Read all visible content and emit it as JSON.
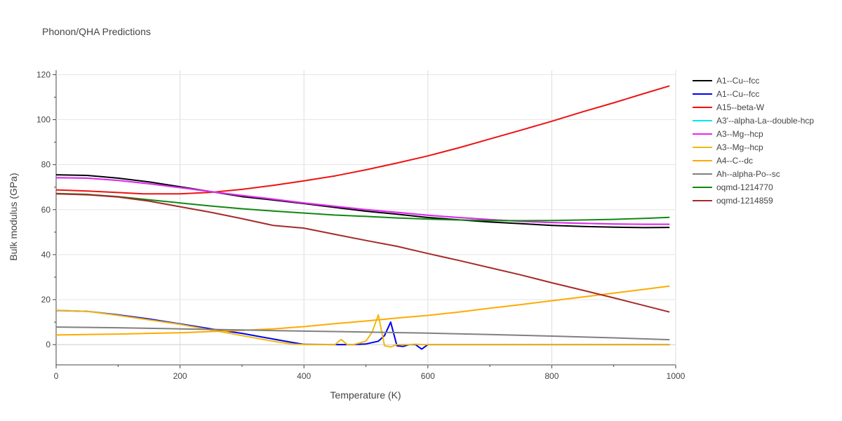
{
  "chart_data": {
    "type": "line",
    "title": "Phonon/QHA Predictions",
    "xlabel": "Temperature (K)",
    "ylabel": "Bulk modulus (GPa)",
    "xlim": [
      0,
      1000
    ],
    "ylim": [
      -9,
      122
    ],
    "xticks": [
      0,
      200,
      400,
      600,
      800,
      1000
    ],
    "yticks": [
      0,
      20,
      40,
      60,
      80,
      100,
      120
    ],
    "grid": true,
    "legend_position": "right",
    "series": [
      {
        "name": "A1--Cu--fcc",
        "color": "#000000",
        "x": [
          0,
          50,
          100,
          150,
          200,
          250,
          300,
          350,
          400,
          450,
          500,
          550,
          600,
          650,
          700,
          750,
          800,
          850,
          900,
          950,
          990
        ],
        "y": [
          75.5,
          75.2,
          74.0,
          72.3,
          70.2,
          68.0,
          65.8,
          64.3,
          62.7,
          61.0,
          59.3,
          58.0,
          56.5,
          55.5,
          54.5,
          53.8,
          53.0,
          52.5,
          52.2,
          52.0,
          52.1
        ]
      },
      {
        "name": "A1--Cu--fcc",
        "color": "#0000ee",
        "x": [
          0,
          50,
          100,
          150,
          200,
          250,
          300,
          350,
          380,
          400,
          450,
          480,
          500,
          520,
          530,
          540,
          550,
          560,
          570,
          580,
          590,
          600,
          650,
          700,
          800,
          900,
          990
        ],
        "y": [
          15.2,
          14.8,
          13.2,
          11.4,
          9.2,
          7.0,
          5.0,
          2.5,
          1.0,
          0.1,
          0.0,
          0.0,
          0.3,
          1.5,
          4.0,
          10.0,
          -0.5,
          -0.8,
          0.0,
          0.0,
          -2.0,
          0.0,
          0.0,
          0.0,
          0.0,
          0.0,
          0.0
        ]
      },
      {
        "name": "A15--beta-W",
        "color": "#ee1111",
        "x": [
          0,
          50,
          100,
          140,
          200,
          250,
          300,
          350,
          400,
          450,
          500,
          550,
          600,
          650,
          700,
          750,
          800,
          850,
          900,
          950,
          990
        ],
        "y": [
          68.8,
          68.3,
          67.6,
          67.0,
          67.0,
          67.7,
          69.0,
          70.8,
          72.8,
          75.0,
          77.7,
          80.7,
          83.9,
          87.5,
          91.4,
          95.3,
          99.3,
          103.5,
          107.5,
          111.7,
          115.0
        ]
      },
      {
        "name": "A3'--alpha-La--double-hcp",
        "color": "#00e5ee",
        "x": [
          0,
          50,
          100,
          150,
          200,
          250,
          300,
          350,
          400,
          450,
          500,
          550,
          600,
          650,
          700,
          750,
          800,
          850,
          900,
          950,
          990
        ],
        "y": [
          74.2,
          74.0,
          73.0,
          71.5,
          69.8,
          68.0,
          66.3,
          64.7,
          63.0,
          61.5,
          60.0,
          58.8,
          57.5,
          56.5,
          55.6,
          54.8,
          54.3,
          53.9,
          53.6,
          53.5,
          53.5
        ]
      },
      {
        "name": "A3--Mg--hcp",
        "color": "#ee22ee",
        "x": [
          0,
          50,
          100,
          150,
          200,
          250,
          300,
          350,
          400,
          450,
          500,
          550,
          600,
          650,
          700,
          750,
          800,
          850,
          900,
          950,
          990
        ],
        "y": [
          74.2,
          74.0,
          73.0,
          71.5,
          69.8,
          68.0,
          66.3,
          64.7,
          63.0,
          61.5,
          60.0,
          58.8,
          57.5,
          56.5,
          55.6,
          54.8,
          54.3,
          53.9,
          53.6,
          53.5,
          53.5
        ]
      },
      {
        "name": "A3--Mg--hcp",
        "color": "#eebb11",
        "x": [
          0,
          50,
          100,
          150,
          200,
          250,
          300,
          350,
          380,
          400,
          450,
          460,
          470,
          480,
          500,
          510,
          520,
          530,
          540,
          550,
          560,
          570,
          580,
          590,
          600,
          700,
          800,
          900,
          990
        ],
        "y": [
          15.3,
          14.8,
          13.0,
          11.0,
          9.0,
          6.5,
          4.0,
          1.5,
          0.3,
          0.0,
          0.0,
          2.3,
          0.0,
          0.0,
          1.5,
          5.5,
          13.2,
          -0.5,
          -1.0,
          0.0,
          0.0,
          0.0,
          0.2,
          0.0,
          0.0,
          0.0,
          0.0,
          0.0,
          0.0
        ]
      },
      {
        "name": "A4--C--dc",
        "color": "#ffaa00",
        "x": [
          0,
          50,
          100,
          150,
          200,
          250,
          300,
          350,
          400,
          450,
          500,
          550,
          600,
          650,
          700,
          750,
          800,
          850,
          900,
          950,
          990
        ],
        "y": [
          4.3,
          4.5,
          4.7,
          5.0,
          5.3,
          5.8,
          6.3,
          7.0,
          8.0,
          9.3,
          10.5,
          11.8,
          13.0,
          14.5,
          16.2,
          17.8,
          19.5,
          21.2,
          22.9,
          24.6,
          26.0
        ]
      },
      {
        "name": "Ah--alpha-Po--sc",
        "color": "#808080",
        "x": [
          0,
          100,
          200,
          300,
          400,
          500,
          600,
          700,
          800,
          900,
          990
        ],
        "y": [
          7.8,
          7.5,
          7.0,
          6.5,
          6.0,
          5.6,
          5.1,
          4.5,
          3.8,
          3.0,
          2.2
        ]
      },
      {
        "name": "oqmd-1214770",
        "color": "#118811",
        "x": [
          0,
          50,
          100,
          150,
          200,
          250,
          300,
          350,
          400,
          450,
          500,
          550,
          600,
          650,
          700,
          750,
          800,
          850,
          900,
          950,
          990
        ],
        "y": [
          67.2,
          66.8,
          65.8,
          64.4,
          63.0,
          61.6,
          60.4,
          59.4,
          58.5,
          57.6,
          57.0,
          56.3,
          55.8,
          55.4,
          55.2,
          55.1,
          55.2,
          55.4,
          55.7,
          56.1,
          56.6
        ]
      },
      {
        "name": "oqmd-1214859",
        "color": "#a52a2a",
        "x": [
          0,
          50,
          100,
          150,
          200,
          250,
          300,
          350,
          400,
          450,
          500,
          550,
          600,
          650,
          700,
          750,
          800,
          850,
          900,
          950,
          990
        ],
        "y": [
          67.0,
          66.6,
          65.6,
          63.8,
          61.3,
          58.8,
          56.0,
          53.0,
          51.8,
          49.0,
          46.3,
          43.7,
          40.5,
          37.4,
          34.2,
          31.0,
          27.5,
          24.2,
          20.8,
          17.3,
          14.5
        ]
      }
    ]
  }
}
